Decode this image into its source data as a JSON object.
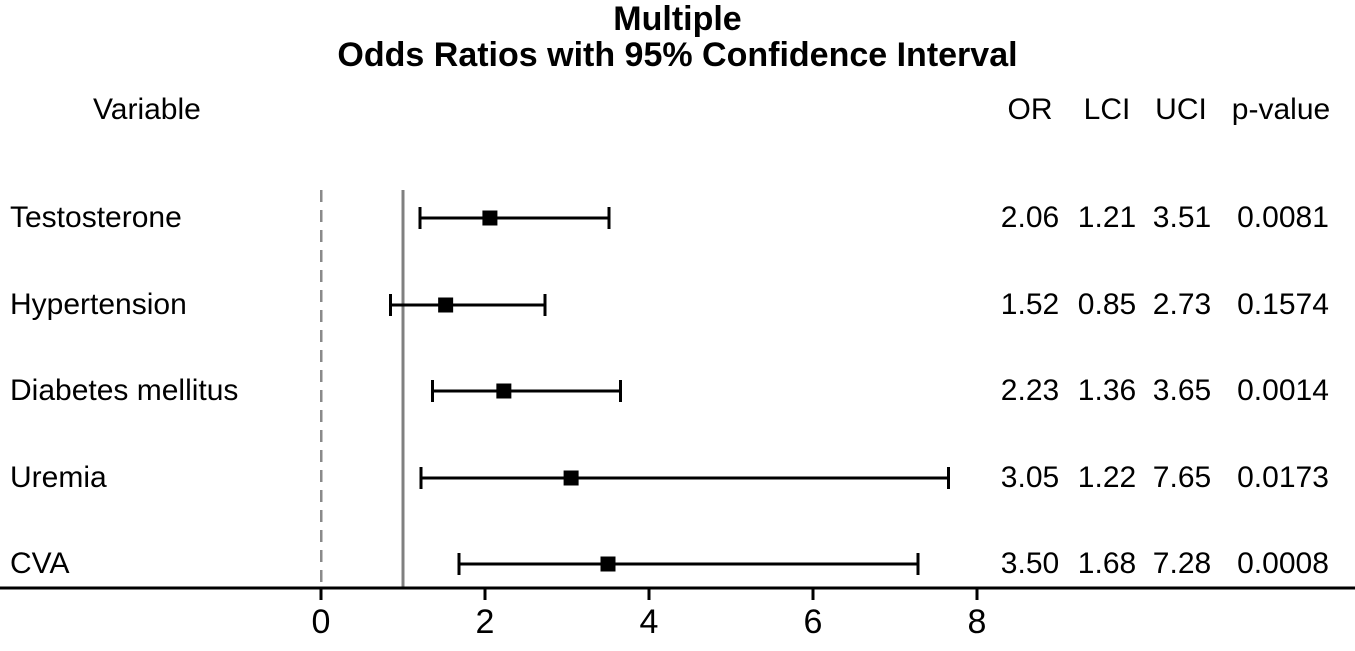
{
  "chart_data": {
    "type": "forest_plot",
    "title_line1": "Multiple",
    "title_line2": "Odds Ratios with 95% Confidence Interval",
    "variable_header": "Variable",
    "column_headers": [
      "OR",
      "LCI",
      "UCI",
      "p-value"
    ],
    "rows": [
      {
        "variable": "Testosterone",
        "or": "2.06",
        "lci": "1.21",
        "uci": "3.51",
        "p": "0.0081"
      },
      {
        "variable": "Hypertension",
        "or": "1.52",
        "lci": "0.85",
        "uci": "2.73",
        "p": "0.1574"
      },
      {
        "variable": "Diabetes mellitus",
        "or": "2.23",
        "lci": "1.36",
        "uci": "3.65",
        "p": "0.0014"
      },
      {
        "variable": "Uremia",
        "or": "3.05",
        "lci": "1.22",
        "uci": "7.65",
        "p": "0.0173"
      },
      {
        "variable": "CVA",
        "or": "3.50",
        "lci": "1.68",
        "uci": "7.28",
        "p": "0.0008"
      }
    ],
    "x_axis": {
      "tick_values": [
        0,
        2,
        4,
        6,
        8
      ],
      "tick_labels": [
        "0",
        "2",
        "4",
        "6",
        "8"
      ],
      "grid": "off",
      "legend": "none"
    },
    "reference_lines": [
      {
        "value": 0,
        "style": "dashed"
      },
      {
        "value": 1,
        "style": "solid"
      }
    ],
    "colors": {
      "marker": "#000000",
      "error_bar": "#000000",
      "axis": "#000000",
      "text": "#000000",
      "reference_solid": "#808080",
      "reference_dashed": "#8a8a8a",
      "background": "#ffffff"
    }
  }
}
